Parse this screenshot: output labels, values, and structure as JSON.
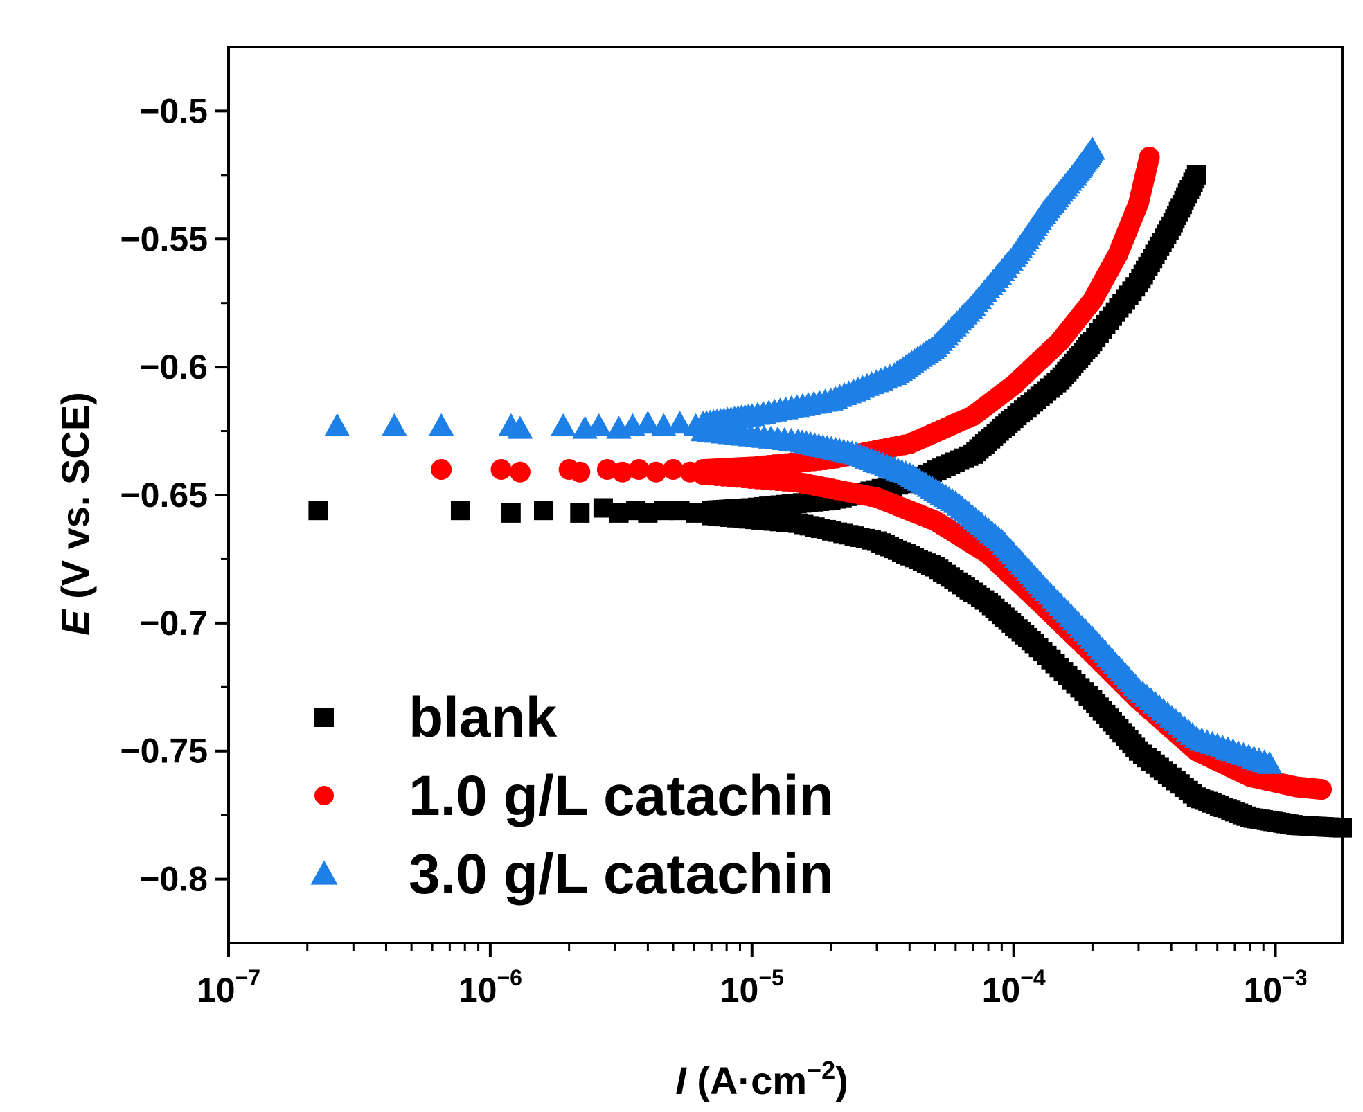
{
  "chart_data": {
    "type": "scatter",
    "xscale": "log",
    "xlim": [
      1e-07,
      0.0018
    ],
    "ylim": [
      -0.825,
      -0.475
    ],
    "xaxis": {
      "label_italic": "I",
      "label_main": " (A·cm",
      "label_sup": "−2",
      "label_close": ")",
      "ticks": [
        {
          "value": 1e-07,
          "base": "10",
          "exp": "−7"
        },
        {
          "value": 1e-06,
          "base": "10",
          "exp": "−6"
        },
        {
          "value": 1e-05,
          "base": "10",
          "exp": "−5"
        },
        {
          "value": 0.0001,
          "base": "10",
          "exp": "−4"
        },
        {
          "value": 0.001,
          "base": "10",
          "exp": "−3"
        }
      ]
    },
    "yaxis": {
      "label_italic": "E",
      "label_main": " (V vs. SCE)",
      "ticks": [
        {
          "value": -0.5,
          "label": "−0.5"
        },
        {
          "value": -0.55,
          "label": "−0.55"
        },
        {
          "value": -0.6,
          "label": "−0.6"
        },
        {
          "value": -0.65,
          "label": "−0.65"
        },
        {
          "value": -0.7,
          "label": "−0.7"
        },
        {
          "value": -0.75,
          "label": "−0.75"
        },
        {
          "value": -0.8,
          "label": "−0.8"
        }
      ]
    },
    "legend_position": "bottom-left",
    "series": [
      {
        "name": "blank",
        "marker": "square",
        "color": "#000000",
        "scatter": [
          [
            2.2e-07,
            -0.656
          ],
          [
            7.7e-07,
            -0.656
          ],
          [
            1.2e-06,
            -0.657
          ],
          [
            1.6e-06,
            -0.656
          ],
          [
            2.2e-06,
            -0.657
          ],
          [
            2.7e-06,
            -0.655
          ],
          [
            3.1e-06,
            -0.657
          ],
          [
            3.6e-06,
            -0.656
          ],
          [
            4e-06,
            -0.657
          ],
          [
            4.6e-06,
            -0.656
          ],
          [
            5.3e-06,
            -0.656
          ],
          [
            6.1e-06,
            -0.657
          ]
        ],
        "anodic": [
          [
            7e-06,
            -0.656
          ],
          [
            1e-05,
            -0.655
          ],
          [
            2e-05,
            -0.652
          ],
          [
            4e-05,
            -0.645
          ],
          [
            7e-05,
            -0.634
          ],
          [
            0.0001,
            -0.62
          ],
          [
            0.00015,
            -0.605
          ],
          [
            0.0002,
            -0.59
          ],
          [
            0.0003,
            -0.567
          ],
          [
            0.0004,
            -0.545
          ],
          [
            0.0005,
            -0.525
          ]
        ],
        "cathodic": [
          [
            7e-06,
            -0.658
          ],
          [
            1.5e-05,
            -0.661
          ],
          [
            3e-05,
            -0.668
          ],
          [
            5e-05,
            -0.678
          ],
          [
            8e-05,
            -0.692
          ],
          [
            0.00012,
            -0.708
          ],
          [
            0.0002,
            -0.73
          ],
          [
            0.0003,
            -0.75
          ],
          [
            0.0005,
            -0.768
          ],
          [
            0.0008,
            -0.776
          ],
          [
            0.0012,
            -0.779
          ],
          [
            0.0018,
            -0.78
          ]
        ]
      },
      {
        "name": "1.0 g/L catachin",
        "marker": "circle",
        "color": "#ff0000",
        "scatter": [
          [
            6.5e-07,
            -0.64
          ],
          [
            1.1e-06,
            -0.64
          ],
          [
            1.3e-06,
            -0.641
          ],
          [
            2e-06,
            -0.64
          ],
          [
            2.2e-06,
            -0.641
          ],
          [
            2.8e-06,
            -0.64
          ],
          [
            3.2e-06,
            -0.641
          ],
          [
            3.7e-06,
            -0.64
          ],
          [
            4.3e-06,
            -0.641
          ],
          [
            5e-06,
            -0.64
          ],
          [
            5.8e-06,
            -0.641
          ]
        ],
        "anodic": [
          [
            6.5e-06,
            -0.64
          ],
          [
            1e-05,
            -0.639
          ],
          [
            2e-05,
            -0.636
          ],
          [
            4e-05,
            -0.63
          ],
          [
            7e-05,
            -0.619
          ],
          [
            0.0001,
            -0.607
          ],
          [
            0.00015,
            -0.59
          ],
          [
            0.0002,
            -0.574
          ],
          [
            0.00025,
            -0.556
          ],
          [
            0.0003,
            -0.536
          ],
          [
            0.00033,
            -0.518
          ]
        ],
        "cathodic": [
          [
            6.5e-06,
            -0.642
          ],
          [
            1.5e-05,
            -0.645
          ],
          [
            3e-05,
            -0.651
          ],
          [
            5e-05,
            -0.66
          ],
          [
            8e-05,
            -0.673
          ],
          [
            0.00012,
            -0.69
          ],
          [
            0.0002,
            -0.712
          ],
          [
            0.0003,
            -0.73
          ],
          [
            0.0005,
            -0.75
          ],
          [
            0.0008,
            -0.76
          ],
          [
            0.0012,
            -0.764
          ],
          [
            0.0015,
            -0.765
          ]
        ]
      },
      {
        "name": "3.0 g/L catachin",
        "marker": "triangle",
        "color": "#1e7fe6",
        "scatter": [
          [
            2.6e-07,
            -0.623
          ],
          [
            4.3e-07,
            -0.623
          ],
          [
            6.5e-07,
            -0.623
          ],
          [
            1.2e-06,
            -0.623
          ],
          [
            1.3e-06,
            -0.624
          ],
          [
            1.9e-06,
            -0.623
          ],
          [
            2.3e-06,
            -0.624
          ],
          [
            2.6e-06,
            -0.623
          ],
          [
            3.1e-06,
            -0.624
          ],
          [
            3.5e-06,
            -0.623
          ],
          [
            4e-06,
            -0.622
          ],
          [
            4.6e-06,
            -0.623
          ],
          [
            5.3e-06,
            -0.622
          ],
          [
            6.1e-06,
            -0.623
          ]
        ],
        "anodic": [
          [
            6.5e-06,
            -0.622
          ],
          [
            1e-05,
            -0.619
          ],
          [
            2e-05,
            -0.613
          ],
          [
            3.5e-05,
            -0.603
          ],
          [
            5e-05,
            -0.592
          ],
          [
            7e-05,
            -0.576
          ],
          [
            0.0001,
            -0.557
          ],
          [
            0.00013,
            -0.54
          ],
          [
            0.00017,
            -0.525
          ],
          [
            0.0002,
            -0.515
          ]
        ],
        "cathodic": [
          [
            6.5e-06,
            -0.625
          ],
          [
            1.5e-05,
            -0.629
          ],
          [
            2.5e-05,
            -0.634
          ],
          [
            4e-05,
            -0.642
          ],
          [
            6e-05,
            -0.653
          ],
          [
            9e-05,
            -0.668
          ],
          [
            0.00013,
            -0.686
          ],
          [
            0.0002,
            -0.706
          ],
          [
            0.0003,
            -0.726
          ],
          [
            0.0005,
            -0.745
          ],
          [
            0.00095,
            -0.755
          ]
        ]
      }
    ]
  }
}
